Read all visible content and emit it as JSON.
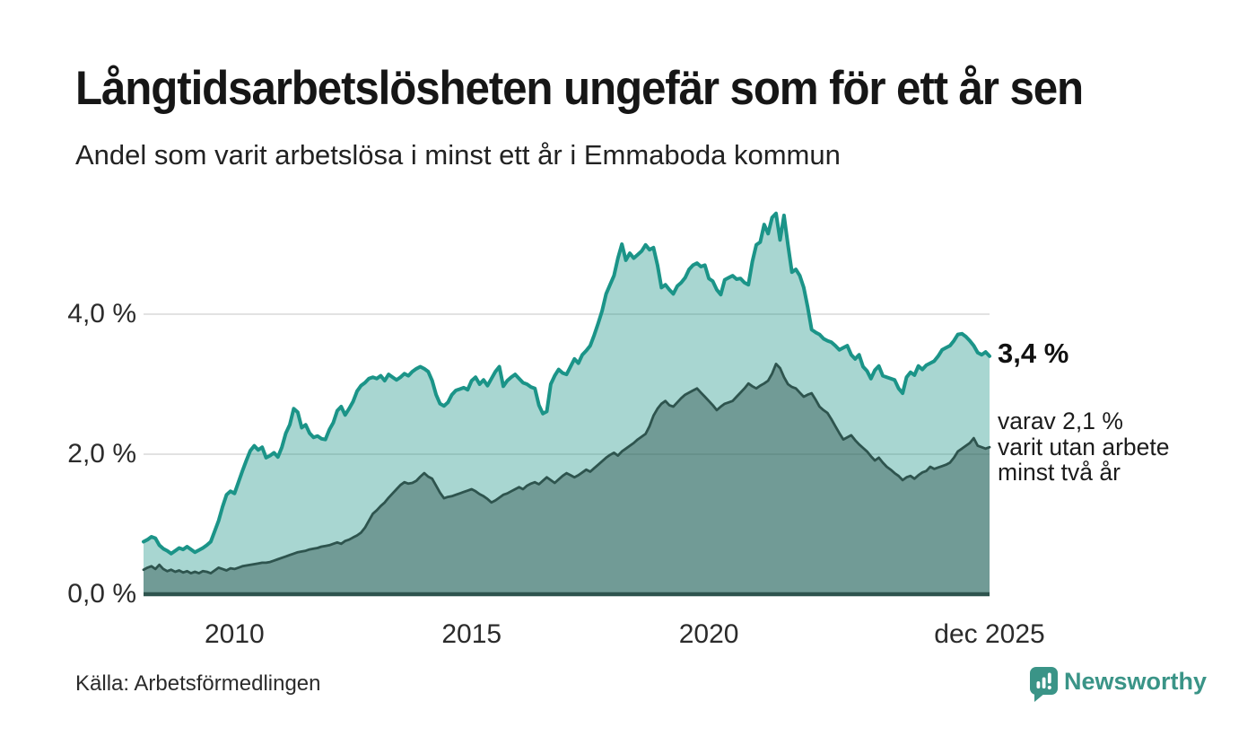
{
  "header": {
    "title": "Långtidsarbetslösheten ungefär som för ett år sen",
    "subtitle": "Andel som varit arbetslösa i minst ett år i Emmaboda kommun"
  },
  "annotations": {
    "latest_total": "3,4 %",
    "latest_two_years": "varav 2,1 %\nvarit utan arbete\nminst två år"
  },
  "footer": {
    "source": "Källa: Arbetsförmedlingen",
    "brand": "Newsworthy"
  },
  "colors": {
    "series_total_line": "#1b9488",
    "series_total_fill": "rgba(26,147,134,0.38)",
    "series_two_years_line": "#2e544e",
    "series_two_years_fill": "rgba(46,84,78,0.45)",
    "gridline": "#d8d8d8",
    "baseline": "#2e544e",
    "brand_teal": "#3a9487"
  },
  "chart_data": {
    "type": "area",
    "title": "Långtidsarbetslösheten ungefär som för ett år sen",
    "subtitle": "Andel som varit arbetslösa i minst ett år i Emmaboda kommun",
    "unit": "%",
    "frequency": "monthly",
    "start": "2008-02",
    "end": "2025-12",
    "ylim": [
      0,
      5.7
    ],
    "grid": "horizontal",
    "y_ticks": [
      {
        "label": "0,0 %",
        "value": 0
      },
      {
        "label": "2,0 %",
        "value": 2
      },
      {
        "label": "4,0 %",
        "value": 4
      }
    ],
    "x_ticks": [
      {
        "label": "2010",
        "index": 23
      },
      {
        "label": "2015",
        "index": 83
      },
      {
        "label": "2020",
        "index": 143
      },
      {
        "label": "dec 2025",
        "index": 214
      }
    ],
    "series": [
      {
        "name": "Andel arbetslösa minst ett år",
        "latest_label": "3,4 %",
        "color": "#1b9488",
        "fill": "rgba(26,147,134,0.38)",
        "values": [
          0.75,
          0.78,
          0.82,
          0.8,
          0.7,
          0.65,
          0.62,
          0.58,
          0.62,
          0.66,
          0.64,
          0.68,
          0.64,
          0.6,
          0.63,
          0.66,
          0.7,
          0.75,
          0.9,
          1.05,
          1.25,
          1.42,
          1.47,
          1.44,
          1.6,
          1.76,
          1.91,
          2.05,
          2.12,
          2.06,
          2.1,
          1.95,
          1.98,
          2.02,
          1.96,
          2.1,
          2.3,
          2.42,
          2.65,
          2.6,
          2.38,
          2.42,
          2.3,
          2.24,
          2.26,
          2.22,
          2.21,
          2.35,
          2.45,
          2.62,
          2.68,
          2.56,
          2.65,
          2.75,
          2.9,
          2.98,
          3.02,
          3.08,
          3.1,
          3.08,
          3.12,
          3.05,
          3.14,
          3.1,
          3.06,
          3.1,
          3.15,
          3.12,
          3.18,
          3.22,
          3.25,
          3.22,
          3.18,
          3.05,
          2.85,
          2.72,
          2.69,
          2.74,
          2.85,
          2.91,
          2.93,
          2.95,
          2.92,
          3.05,
          3.1,
          3.0,
          3.06,
          2.98,
          3.08,
          3.18,
          3.25,
          2.97,
          3.05,
          3.1,
          3.14,
          3.08,
          3.02,
          3.0,
          2.96,
          2.94,
          2.7,
          2.58,
          2.61,
          3.0,
          3.12,
          3.21,
          3.16,
          3.14,
          3.25,
          3.36,
          3.3,
          3.42,
          3.48,
          3.55,
          3.7,
          3.87,
          4.05,
          4.29,
          4.42,
          4.55,
          4.8,
          5.0,
          4.77,
          4.87,
          4.8,
          4.85,
          4.9,
          4.99,
          4.92,
          4.95,
          4.7,
          4.38,
          4.42,
          4.35,
          4.29,
          4.4,
          4.45,
          4.52,
          4.64,
          4.7,
          4.73,
          4.68,
          4.7,
          4.51,
          4.47,
          4.35,
          4.28,
          4.49,
          4.52,
          4.55,
          4.5,
          4.51,
          4.45,
          4.42,
          4.75,
          4.99,
          5.03,
          5.28,
          5.15,
          5.38,
          5.44,
          5.06,
          5.41,
          4.99,
          4.6,
          4.64,
          4.55,
          4.38,
          4.1,
          3.78,
          3.74,
          3.71,
          3.65,
          3.62,
          3.6,
          3.55,
          3.49,
          3.52,
          3.55,
          3.42,
          3.36,
          3.42,
          3.25,
          3.19,
          3.08,
          3.2,
          3.26,
          3.12,
          3.1,
          3.08,
          3.06,
          2.94,
          2.87,
          3.1,
          3.17,
          3.13,
          3.26,
          3.21,
          3.27,
          3.3,
          3.33,
          3.4,
          3.49,
          3.52,
          3.55,
          3.62,
          3.71,
          3.72,
          3.68,
          3.62,
          3.55,
          3.45,
          3.42,
          3.46,
          3.4
        ]
      },
      {
        "name": "varav utan arbete minst två år",
        "latest_label": "2,1 %",
        "color": "#2e544e",
        "fill": "rgba(46,84,78,0.45)",
        "values": [
          0.35,
          0.38,
          0.4,
          0.36,
          0.42,
          0.36,
          0.33,
          0.35,
          0.32,
          0.34,
          0.31,
          0.33,
          0.3,
          0.32,
          0.3,
          0.33,
          0.32,
          0.3,
          0.34,
          0.38,
          0.36,
          0.34,
          0.37,
          0.36,
          0.38,
          0.4,
          0.41,
          0.42,
          0.43,
          0.44,
          0.45,
          0.45,
          0.46,
          0.48,
          0.5,
          0.52,
          0.54,
          0.56,
          0.58,
          0.6,
          0.61,
          0.62,
          0.64,
          0.65,
          0.66,
          0.68,
          0.69,
          0.7,
          0.72,
          0.74,
          0.72,
          0.76,
          0.78,
          0.81,
          0.84,
          0.88,
          0.95,
          1.05,
          1.15,
          1.2,
          1.26,
          1.31,
          1.38,
          1.44,
          1.5,
          1.56,
          1.6,
          1.58,
          1.59,
          1.62,
          1.68,
          1.73,
          1.68,
          1.65,
          1.55,
          1.45,
          1.37,
          1.39,
          1.4,
          1.42,
          1.44,
          1.46,
          1.48,
          1.5,
          1.47,
          1.43,
          1.4,
          1.36,
          1.31,
          1.34,
          1.38,
          1.42,
          1.44,
          1.47,
          1.5,
          1.53,
          1.5,
          1.55,
          1.58,
          1.6,
          1.57,
          1.62,
          1.67,
          1.63,
          1.59,
          1.64,
          1.69,
          1.73,
          1.7,
          1.67,
          1.7,
          1.74,
          1.78,
          1.75,
          1.8,
          1.85,
          1.9,
          1.95,
          1.99,
          2.02,
          1.98,
          2.04,
          2.08,
          2.12,
          2.16,
          2.21,
          2.25,
          2.29,
          2.4,
          2.55,
          2.65,
          2.72,
          2.76,
          2.7,
          2.68,
          2.74,
          2.8,
          2.85,
          2.88,
          2.91,
          2.94,
          2.88,
          2.82,
          2.76,
          2.7,
          2.63,
          2.68,
          2.72,
          2.74,
          2.76,
          2.82,
          2.88,
          2.94,
          3.01,
          2.97,
          2.94,
          2.98,
          3.01,
          3.05,
          3.15,
          3.29,
          3.23,
          3.1,
          3.0,
          2.96,
          2.94,
          2.88,
          2.82,
          2.85,
          2.87,
          2.78,
          2.68,
          2.63,
          2.59,
          2.5,
          2.4,
          2.3,
          2.21,
          2.24,
          2.27,
          2.2,
          2.14,
          2.09,
          2.04,
          1.97,
          1.91,
          1.95,
          1.88,
          1.82,
          1.78,
          1.73,
          1.69,
          1.63,
          1.67,
          1.69,
          1.65,
          1.7,
          1.74,
          1.76,
          1.82,
          1.79,
          1.81,
          1.83,
          1.85,
          1.88,
          1.95,
          2.04,
          2.08,
          2.12,
          2.16,
          2.23,
          2.12,
          2.1,
          2.08,
          2.1
        ]
      }
    ]
  }
}
